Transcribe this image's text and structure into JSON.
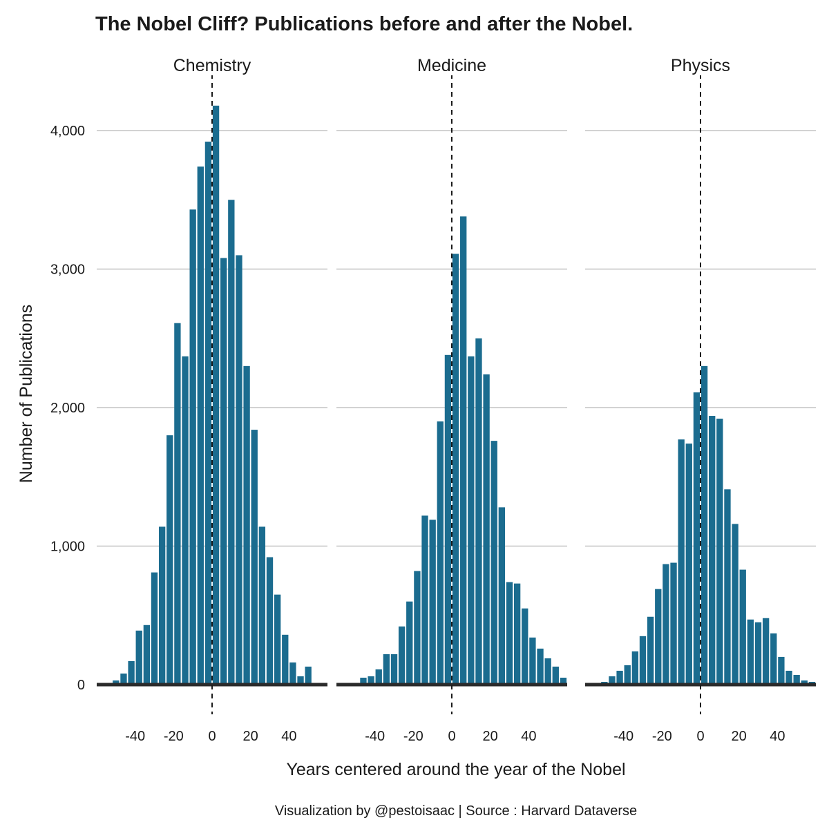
{
  "title": "The Nobel Cliff? Publications before and after the Nobel.",
  "caption": "Visualization by @pestoisaac | Source : Harvard Dataverse",
  "colors": {
    "bar": "#1b6c8f",
    "grid": "#c3c3c3",
    "baseline": "#2b2b2b",
    "text": "#1a1a1a"
  },
  "chart_data": {
    "type": "bar",
    "title": "The Nobel Cliff? Publications before and after the Nobel.",
    "xlabel": "Years centered around the year of the Nobel",
    "ylabel": "Number of Publications",
    "ylim": [
      0,
      4400
    ],
    "xlim": [
      -60,
      60
    ],
    "grid": true,
    "legend": "none",
    "bin_width": 4,
    "reference_line_x": 0,
    "y_ticks": [
      0,
      1000,
      2000,
      3000,
      4000
    ],
    "y_tick_labels": [
      "0",
      "1,000",
      "2,000",
      "3,000",
      "4,000"
    ],
    "x_ticks": [
      -40,
      -20,
      0,
      20,
      40
    ],
    "x_tick_labels": [
      "-40",
      "-20",
      "0",
      "20",
      "40"
    ],
    "x": [
      -58,
      -54,
      -50,
      -46,
      -42,
      -38,
      -34,
      -30,
      -26,
      -22,
      -18,
      -14,
      -10,
      -6,
      -2,
      2,
      6,
      10,
      14,
      18,
      22,
      26,
      30,
      34,
      38,
      42,
      46,
      50,
      54,
      58
    ],
    "facets": [
      {
        "name": "Chemistry",
        "values": [
          0,
          0,
          30,
          80,
          170,
          390,
          430,
          810,
          1140,
          1800,
          2610,
          2370,
          3430,
          3740,
          3920,
          4180,
          3080,
          3500,
          3100,
          2300,
          1840,
          1140,
          920,
          650,
          360,
          160,
          60,
          130,
          10,
          0
        ]
      },
      {
        "name": "Medicine",
        "values": [
          0,
          0,
          0,
          50,
          60,
          110,
          220,
          220,
          420,
          600,
          820,
          1220,
          1190,
          1900,
          2380,
          3110,
          3380,
          2370,
          2500,
          2240,
          1760,
          1280,
          740,
          730,
          550,
          340,
          260,
          190,
          130,
          50
        ]
      },
      {
        "name": "Physics",
        "values": [
          0,
          0,
          20,
          60,
          100,
          140,
          240,
          350,
          490,
          690,
          870,
          880,
          1770,
          1740,
          2110,
          2300,
          1940,
          1920,
          1410,
          1160,
          830,
          470,
          450,
          480,
          370,
          200,
          100,
          70,
          30,
          20
        ]
      }
    ]
  }
}
